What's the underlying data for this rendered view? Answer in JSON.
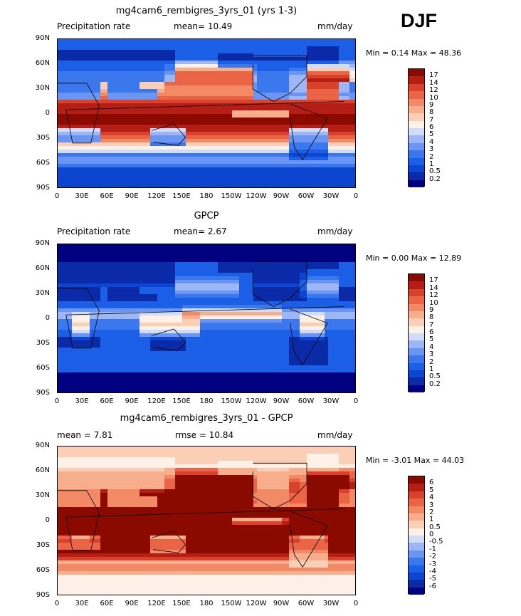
{
  "season": "DJF",
  "colors": {
    "precip_levels": [
      "#000080",
      "#0a2aa8",
      "#0c45d0",
      "#1a5fe6",
      "#3b78ee",
      "#6a95f2",
      "#9db6f6",
      "#cfdcfa",
      "#fdf0e6",
      "#fbcfb5",
      "#f7ae8c",
      "#f28a65",
      "#ea6545",
      "#d9412b",
      "#b51e14",
      "#8a0a00"
    ],
    "diff_levels": [
      "#000080",
      "#0a2aa8",
      "#0c45d0",
      "#1a5fe6",
      "#3b78ee",
      "#6a95f2",
      "#9db6f6",
      "#cfdcfa",
      "#fdf0e6",
      "#fbcfb5",
      "#f7ae8c",
      "#f28a65",
      "#ea6545",
      "#d9412b",
      "#b51e14",
      "#8a0a00"
    ]
  },
  "panels": [
    {
      "title": "mg4cam6_rembigres_3yrs_01 (yrs 1-3)",
      "left_label": "Precipitation rate",
      "center_label": "mean=",
      "center_value": "10.49",
      "right_label": "mm/day",
      "min_label": "Min =",
      "min_value": "0.14",
      "max_label": "Max =",
      "max_value": "48.36",
      "colorbar_labels": [
        "17",
        "14",
        "12",
        "10",
        "9",
        "8",
        "7",
        "6",
        "5",
        "4",
        "3",
        "2",
        "1",
        "0.5",
        "0.2"
      ],
      "field": "model"
    },
    {
      "title": "GPCP",
      "left_label": "Precipitation rate",
      "center_label": "mean=",
      "center_value": "2.67",
      "right_label": "mm/day",
      "min_label": "Min =",
      "min_value": "0.00",
      "max_label": "Max =",
      "max_value": "12.89",
      "colorbar_labels": [
        "17",
        "14",
        "12",
        "10",
        "9",
        "8",
        "7",
        "6",
        "5",
        "4",
        "3",
        "2",
        "1",
        "0.5",
        "0.2"
      ],
      "field": "obs"
    },
    {
      "title": "mg4cam6_rembigres_3yrs_01 - GPCP",
      "left_label": "mean =",
      "left_value": "7.81",
      "center_label": "rmse =",
      "center_value": "10.84",
      "right_label": "mm/day",
      "min_label": "Min =",
      "min_value": "-3.01",
      "max_label": "Max =",
      "max_value": "44.03",
      "colorbar_labels": [
        "6",
        "5",
        "4",
        "3",
        "2",
        "1",
        "0.5",
        "0",
        "-0.5",
        "-1",
        "-2",
        "-3",
        "-4",
        "-5",
        "-6"
      ],
      "field": "diff"
    }
  ],
  "chart_data": {
    "type": "heatmap",
    "x_tick_labels": [
      "0",
      "30E",
      "60E",
      "90E",
      "120E",
      "150E",
      "180",
      "150W",
      "120W",
      "90W",
      "60W",
      "30W",
      "0"
    ],
    "y_tick_labels": [
      "90N",
      "60N",
      "30N",
      "0",
      "30S",
      "60S",
      "90S"
    ],
    "xlim": [
      0,
      360
    ],
    "ylim": [
      -90,
      90
    ]
  }
}
